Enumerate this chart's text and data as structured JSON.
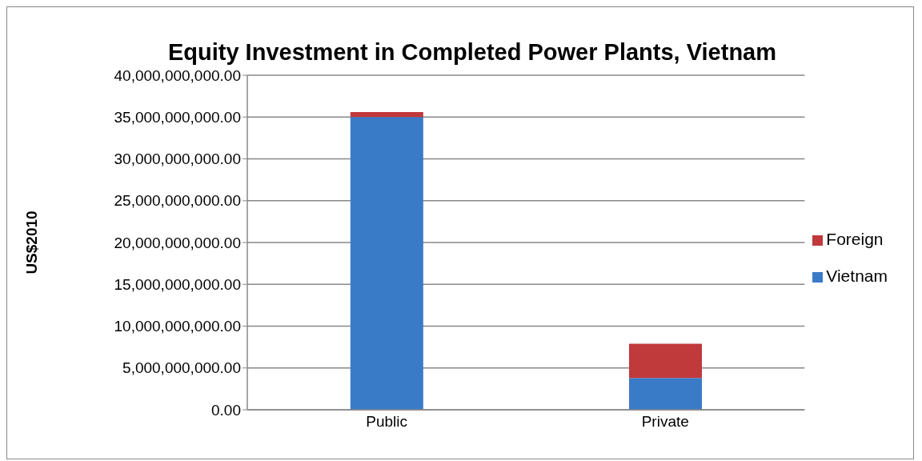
{
  "chart_data": {
    "type": "bar",
    "title": "Equity Investment in Completed Power Plants, Vietnam",
    "ylabel": "US$2010",
    "categories": [
      "Public",
      "Private"
    ],
    "stacked": true,
    "series": [
      {
        "name": "Vietnam",
        "color": "#3a7bc8",
        "values": [
          35000000000,
          3800000000
        ]
      },
      {
        "name": "Foreign",
        "color": "#c0393b",
        "values": [
          600000000,
          4100000000
        ]
      }
    ],
    "ylim": [
      0,
      40000000000
    ],
    "yticks": [
      {
        "value": 0,
        "label": "0.00"
      },
      {
        "value": 5000000000,
        "label": "5,000,000,000.00"
      },
      {
        "value": 10000000000,
        "label": "10,000,000,000.00"
      },
      {
        "value": 15000000000,
        "label": "15,000,000,000.00"
      },
      {
        "value": 20000000000,
        "label": "20,000,000,000.00"
      },
      {
        "value": 25000000000,
        "label": "25,000,000,000.00"
      },
      {
        "value": 30000000000,
        "label": "30,000,000,000.00"
      },
      {
        "value": 35000000000,
        "label": "35,000,000,000.00"
      },
      {
        "value": 40000000000,
        "label": "40,000,000,000.00"
      }
    ],
    "grid": "y",
    "legend": "right"
  }
}
